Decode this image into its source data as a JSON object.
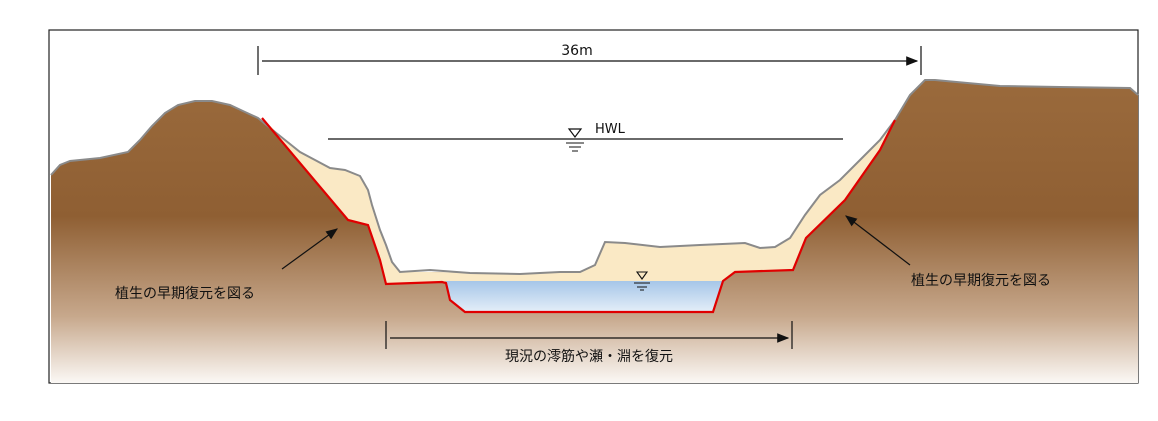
{
  "diagram": {
    "width_label": "36m",
    "hwl_label": "HWL",
    "vegetation_left_label": "植生の早期復元を図る",
    "vegetation_right_label": "植生の早期復元を図る",
    "restore_label": "現況の澪筋や瀬・淵を復元"
  },
  "colors": {
    "earth_top": "#9a6a3c",
    "earth_bottom": "#ffffff",
    "fill_soil": "#fae9c5",
    "water": "#a8c8e8",
    "revetment_line": "#e00000",
    "ground_line": "#8a8a8a"
  }
}
